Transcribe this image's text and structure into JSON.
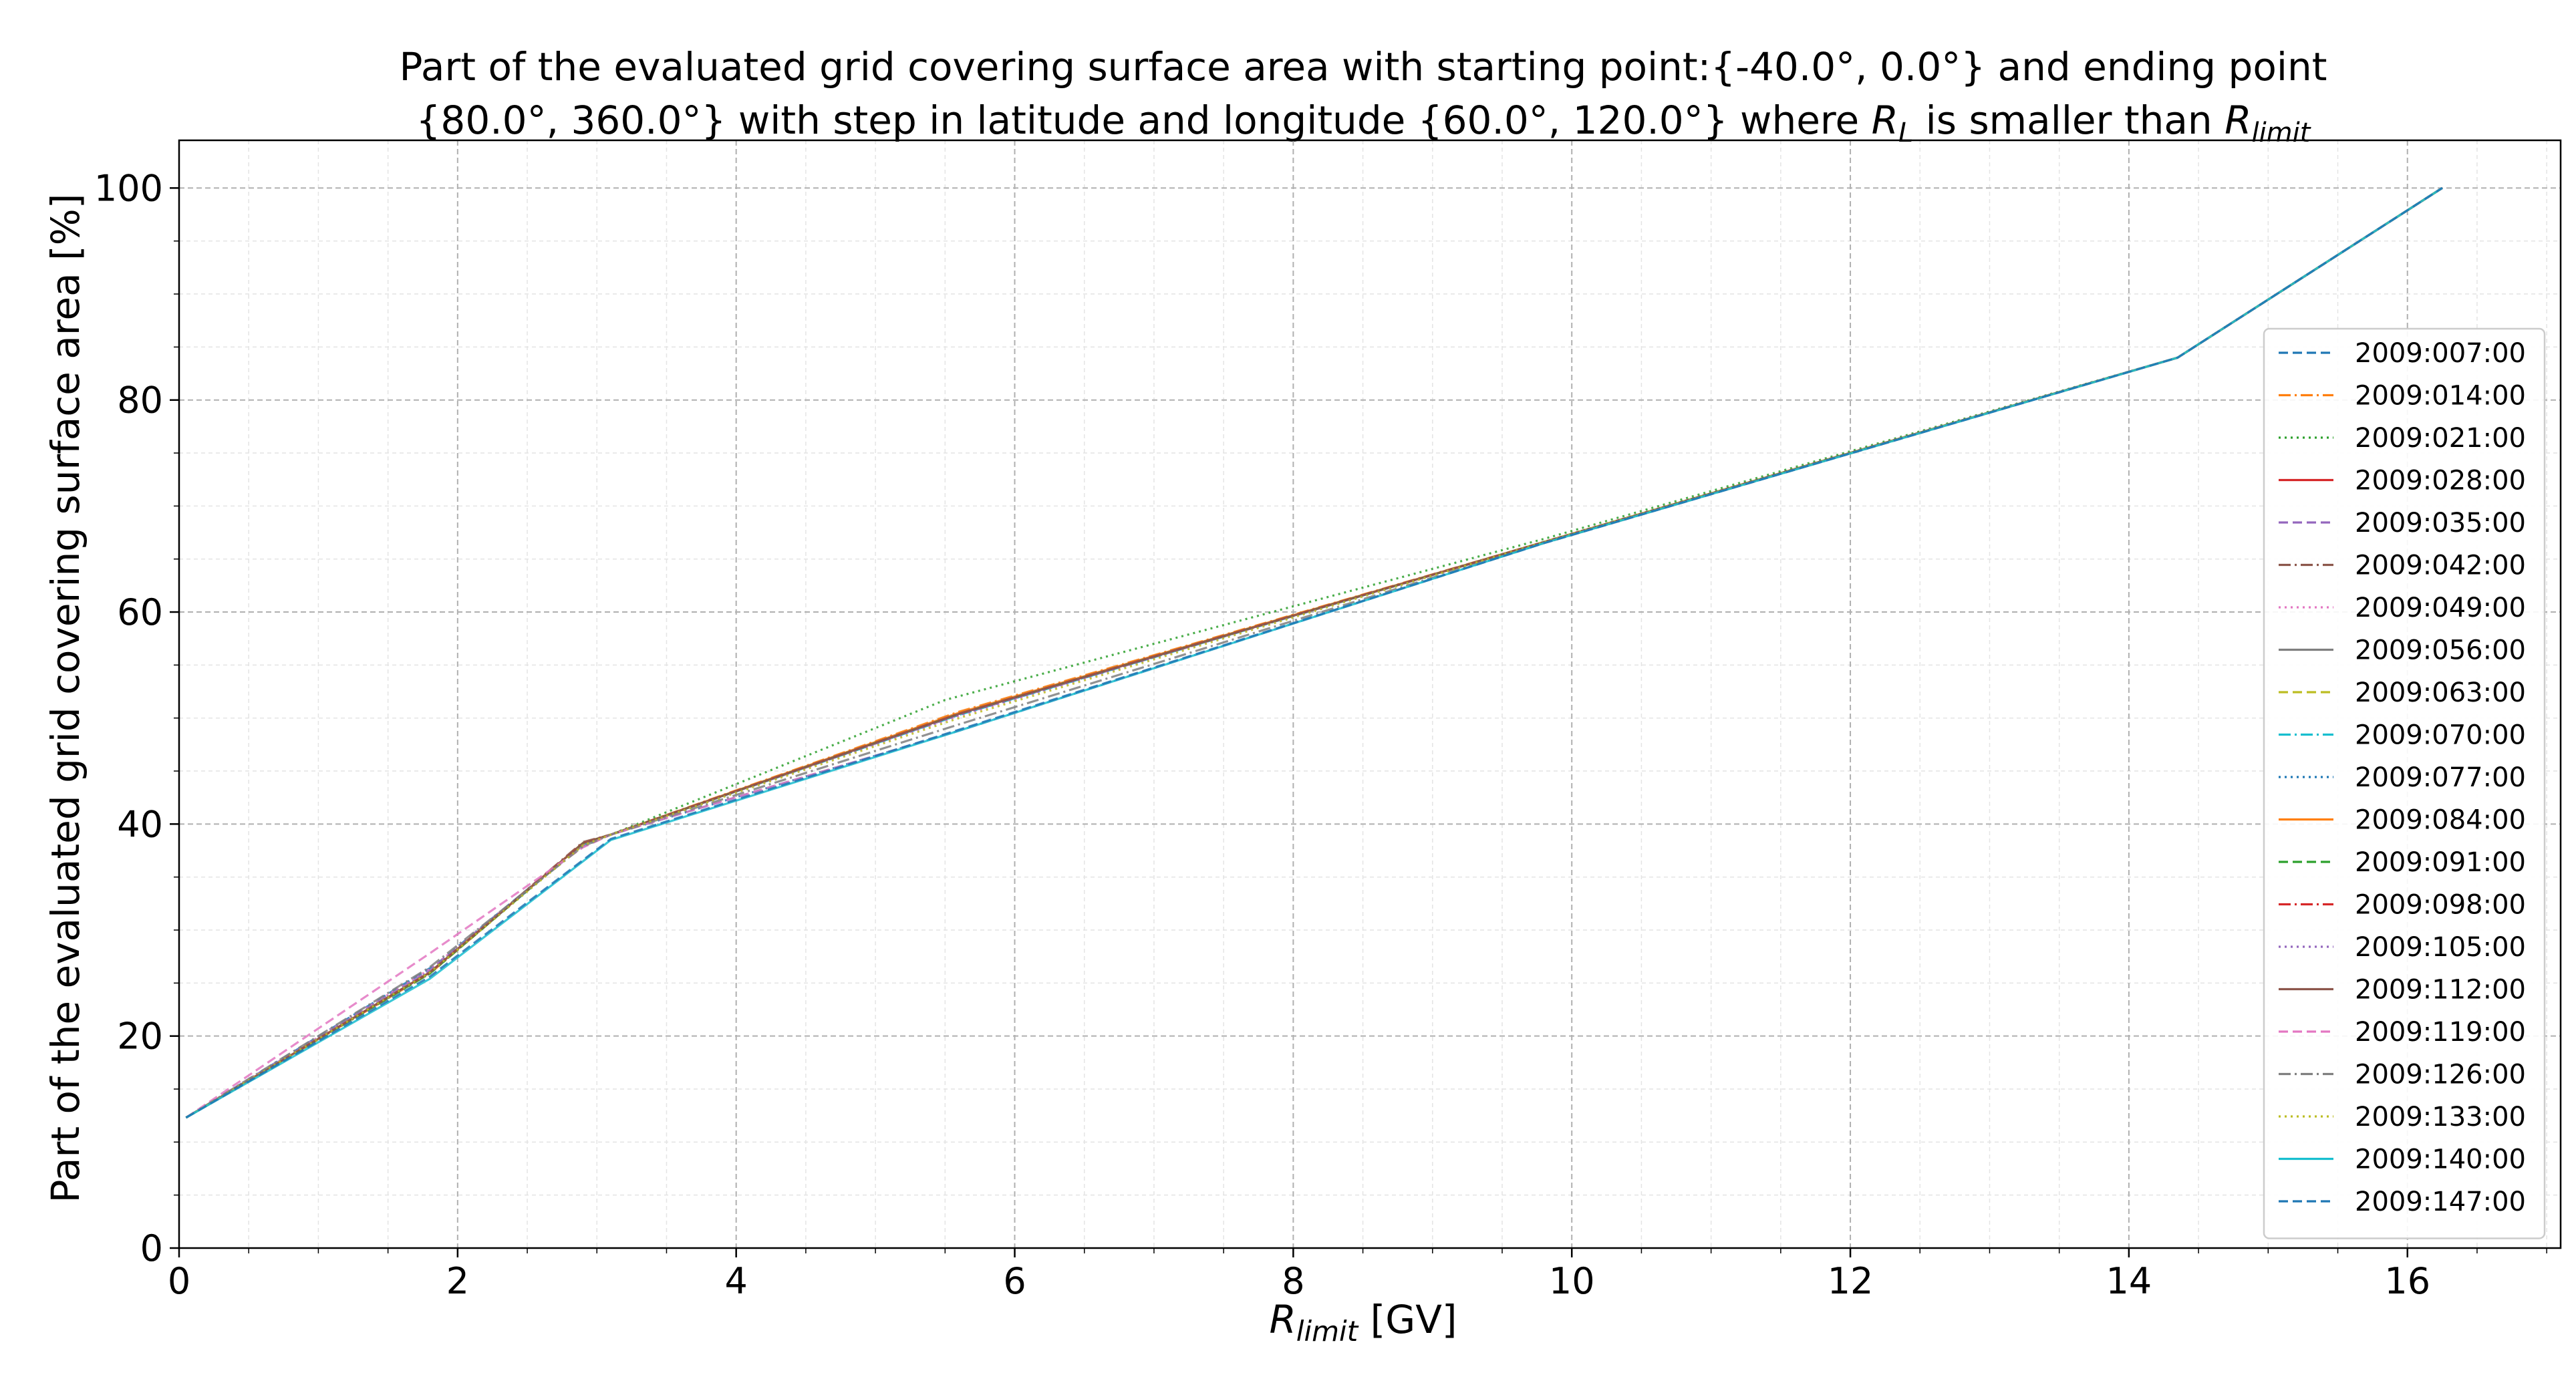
{
  "chart_data": {
    "type": "line",
    "title_lines": [
      "Part of the evaluated grid covering surface area with starting point:{-40.0°, 0.0°} and ending point",
      "{80.0°, 360.0°} with step in latitude and longitude {60.0°, 120.0°} where "
    ],
    "title_math": {
      "r1": "R",
      "r1_sub": "L",
      "mid": " is smaller than ",
      "r2": "R",
      "r2_sub": "limit"
    },
    "xlabel": {
      "var": "R",
      "sub": "limit",
      "unit": " [GV]"
    },
    "ylabel": "Part of the evaluated grid covering surface area  [%]",
    "xlim": [
      0,
      17.1
    ],
    "ylim": [
      0,
      104.5
    ],
    "xticks": [
      0,
      2,
      4,
      6,
      8,
      10,
      12,
      14,
      16
    ],
    "yticks": [
      0,
      20,
      40,
      60,
      80,
      100
    ],
    "x_minor_step": 0.5,
    "y_minor_step": 5,
    "grid": true,
    "legend_position": "center-right",
    "series": [
      {
        "name": "2009:007:00",
        "color": "#1f77b4",
        "dash": "dashed",
        "x": [
          0.05,
          1.85,
          2.85,
          3.1,
          5.6,
          9.8,
          14.35,
          16.25
        ],
        "y": [
          12.3,
          26.8,
          37.6,
          39.0,
          48.8,
          66.5,
          84.0,
          100.0
        ]
      },
      {
        "name": "2009:014:00",
        "color": "#ff7f0e",
        "dash": "dashdot",
        "x": [
          0.05,
          1.8,
          2.9,
          3.1,
          5.6,
          9.8,
          14.35,
          16.25
        ],
        "y": [
          12.3,
          25.9,
          38.2,
          39.0,
          50.6,
          66.6,
          84.0,
          100.0
        ]
      },
      {
        "name": "2009:021:00",
        "color": "#2ca02c",
        "dash": "dotted",
        "x": [
          0.05,
          1.8,
          2.9,
          3.1,
          5.5,
          9.8,
          14.35,
          16.25
        ],
        "y": [
          12.3,
          25.9,
          38.2,
          39.0,
          51.7,
          66.9,
          84.0,
          100.0
        ]
      },
      {
        "name": "2009:028:00",
        "color": "#d62728",
        "dash": "solid",
        "x": [
          0.05,
          1.8,
          2.9,
          3.1,
          5.6,
          9.8,
          14.35,
          16.25
        ],
        "y": [
          12.3,
          26.0,
          38.2,
          39.0,
          50.4,
          66.6,
          84.0,
          100.0
        ]
      },
      {
        "name": "2009:035:00",
        "color": "#9467bd",
        "dash": "dashed",
        "x": [
          0.05,
          1.8,
          2.9,
          3.1,
          5.6,
          9.8,
          14.35,
          16.25
        ],
        "y": [
          12.3,
          26.2,
          38.0,
          39.0,
          50.3,
          66.6,
          84.0,
          100.0
        ]
      },
      {
        "name": "2009:042:00",
        "color": "#8c564b",
        "dash": "dashdot",
        "x": [
          0.05,
          1.8,
          2.9,
          3.1,
          5.6,
          9.8,
          14.35,
          16.25
        ],
        "y": [
          12.3,
          26.0,
          38.3,
          39.0,
          50.5,
          66.6,
          84.0,
          100.0
        ]
      },
      {
        "name": "2009:049:00",
        "color": "#e377c2",
        "dash": "dotted",
        "x": [
          0.05,
          1.8,
          2.9,
          3.1,
          5.6,
          9.8,
          14.35,
          16.25
        ],
        "y": [
          12.3,
          26.3,
          38.0,
          39.0,
          50.2,
          66.6,
          84.0,
          100.0
        ]
      },
      {
        "name": "2009:056:00",
        "color": "#7f7f7f",
        "dash": "solid",
        "x": [
          0.05,
          1.8,
          2.9,
          3.1,
          5.6,
          9.8,
          14.35,
          16.25
        ],
        "y": [
          12.3,
          26.0,
          38.2,
          39.0,
          50.4,
          66.6,
          84.0,
          100.0
        ]
      },
      {
        "name": "2009:063:00",
        "color": "#bcbd22",
        "dash": "dashed",
        "x": [
          0.05,
          1.8,
          2.9,
          3.1,
          5.6,
          9.8,
          14.35,
          16.25
        ],
        "y": [
          12.3,
          26.0,
          38.1,
          39.0,
          50.4,
          66.6,
          84.0,
          100.0
        ]
      },
      {
        "name": "2009:070:00",
        "color": "#17becf",
        "dash": "dashdot",
        "x": [
          0.05,
          1.8,
          2.9,
          3.1,
          5.6,
          9.8,
          14.35,
          16.25
        ],
        "y": [
          12.3,
          26.0,
          38.1,
          39.0,
          50.3,
          66.6,
          84.0,
          100.0
        ]
      },
      {
        "name": "2009:077:00",
        "color": "#1f77b4",
        "dash": "dotted",
        "x": [
          0.05,
          1.8,
          2.9,
          3.1,
          5.6,
          9.8,
          14.35,
          16.25
        ],
        "y": [
          12.3,
          26.1,
          38.1,
          39.0,
          50.3,
          66.6,
          84.0,
          100.0
        ]
      },
      {
        "name": "2009:084:00",
        "color": "#ff7f0e",
        "dash": "solid",
        "x": [
          0.05,
          1.8,
          2.9,
          3.1,
          5.6,
          9.8,
          14.35,
          16.25
        ],
        "y": [
          12.3,
          26.0,
          38.2,
          39.0,
          50.5,
          66.6,
          84.0,
          100.0
        ]
      },
      {
        "name": "2009:091:00",
        "color": "#2ca02c",
        "dash": "dashed",
        "x": [
          0.05,
          1.8,
          2.9,
          3.1,
          5.6,
          9.8,
          14.35,
          16.25
        ],
        "y": [
          12.3,
          25.9,
          38.2,
          39.0,
          50.4,
          66.6,
          84.0,
          100.0
        ]
      },
      {
        "name": "2009:098:00",
        "color": "#d62728",
        "dash": "dashdot",
        "x": [
          0.05,
          1.8,
          2.9,
          3.1,
          5.6,
          9.8,
          14.35,
          16.25
        ],
        "y": [
          12.3,
          26.0,
          38.2,
          39.0,
          50.4,
          66.6,
          84.0,
          100.0
        ]
      },
      {
        "name": "2009:105:00",
        "color": "#9467bd",
        "dash": "dotted",
        "x": [
          0.05,
          1.8,
          2.9,
          3.1,
          5.6,
          9.8,
          14.35,
          16.25
        ],
        "y": [
          12.3,
          26.1,
          38.1,
          39.0,
          50.3,
          66.6,
          84.0,
          100.0
        ]
      },
      {
        "name": "2009:112:00",
        "color": "#8c564b",
        "dash": "solid",
        "x": [
          0.05,
          1.8,
          2.9,
          3.1,
          5.6,
          9.8,
          14.35,
          16.25
        ],
        "y": [
          12.3,
          26.0,
          38.2,
          39.0,
          50.4,
          66.6,
          84.0,
          100.0
        ]
      },
      {
        "name": "2009:119:00",
        "color": "#e377c2",
        "dash": "dashed",
        "x": [
          0.05,
          1.8,
          2.9,
          3.1,
          5.6,
          9.8,
          14.35,
          16.25
        ],
        "y": [
          12.3,
          27.8,
          37.8,
          39.0,
          48.8,
          66.5,
          84.0,
          100.0
        ]
      },
      {
        "name": "2009:126:00",
        "color": "#7f7f7f",
        "dash": "dashdot",
        "x": [
          0.05,
          1.8,
          2.9,
          3.1,
          5.6,
          9.8,
          14.35,
          16.25
        ],
        "y": [
          12.3,
          26.5,
          37.9,
          39.0,
          49.4,
          66.5,
          84.0,
          100.0
        ]
      },
      {
        "name": "2009:133:00",
        "color": "#bcbd22",
        "dash": "dotted",
        "x": [
          0.05,
          1.8,
          2.9,
          3.1,
          5.6,
          9.8,
          14.35,
          16.25
        ],
        "y": [
          12.3,
          26.0,
          38.0,
          39.0,
          50.0,
          66.6,
          84.0,
          100.0
        ]
      },
      {
        "name": "2009:140:00",
        "color": "#17becf",
        "dash": "solid",
        "x": [
          0.05,
          1.8,
          3.1,
          5.6,
          9.8,
          14.35,
          16.25
        ],
        "y": [
          12.3,
          25.4,
          38.5,
          48.8,
          66.5,
          84.0,
          100.0
        ]
      },
      {
        "name": "2009:147:00",
        "color": "#1f77b4",
        "dash": "dashed",
        "x": [
          0.05,
          1.8,
          3.1,
          5.6,
          9.8,
          14.35,
          16.25
        ],
        "y": [
          12.3,
          25.6,
          38.6,
          48.9,
          66.5,
          84.0,
          100.0
        ]
      }
    ]
  }
}
